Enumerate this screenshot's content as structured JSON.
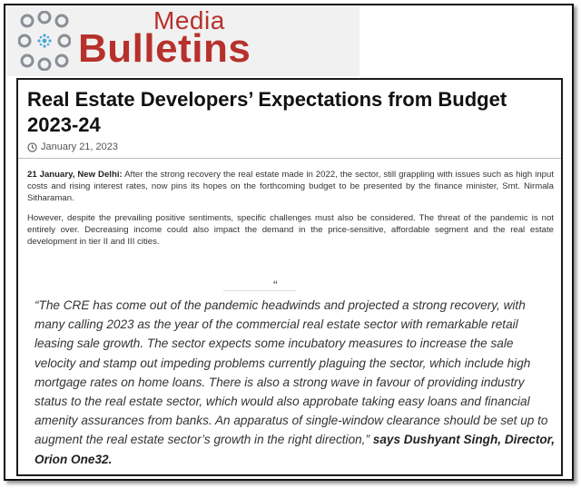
{
  "brand": {
    "media": "Media",
    "bulletins": "Bulletins",
    "accent": "#b7312c",
    "dot_color": "#8a8f96",
    "center_color": "#4aa6d8"
  },
  "article": {
    "title": "Real Estate Developers’ Expectations from Budget 2023-24",
    "date_icon": "clock-icon",
    "date": "January 21, 2023",
    "lead_dateline": "21 January, New Delhi:",
    "lead_text": " After the strong recovery the real estate made in 2022, the sector, still grappling with issues such as high input costs and rising interest rates, now pins its hopes on the forthcoming budget to be presented by the finance minister, Smt. Nirmala Sitharaman.",
    "paragraph2": "However, despite the prevailing positive sentiments, specific challenges must also be considered. The threat of the pandemic is not entirely over. Decreasing income could also impact the demand in the price-sensitive, affordable segment and the real estate development in tier II and III cities.",
    "quote_mark": "“",
    "quote_text": "“The CRE has come out of the pandemic headwinds and projected a strong recovery, with many calling 2023 as the year of the commercial real estate sector with remarkable retail leasing sale growth. The sector expects some incubatory measures to increase the sale velocity and stamp out impeding problems currently plaguing the sector, which include high mortgage rates on home loans. There is also a strong wave in favour of providing industry status to the real estate sector, which would also approbate taking easy loans and financial amenity assurances from banks. An apparatus of single-window clearance should be set up to augment the real estate sector’s growth in the right direction,”",
    "quote_attribution": " says Dushyant Singh, Director, Orion One32."
  }
}
